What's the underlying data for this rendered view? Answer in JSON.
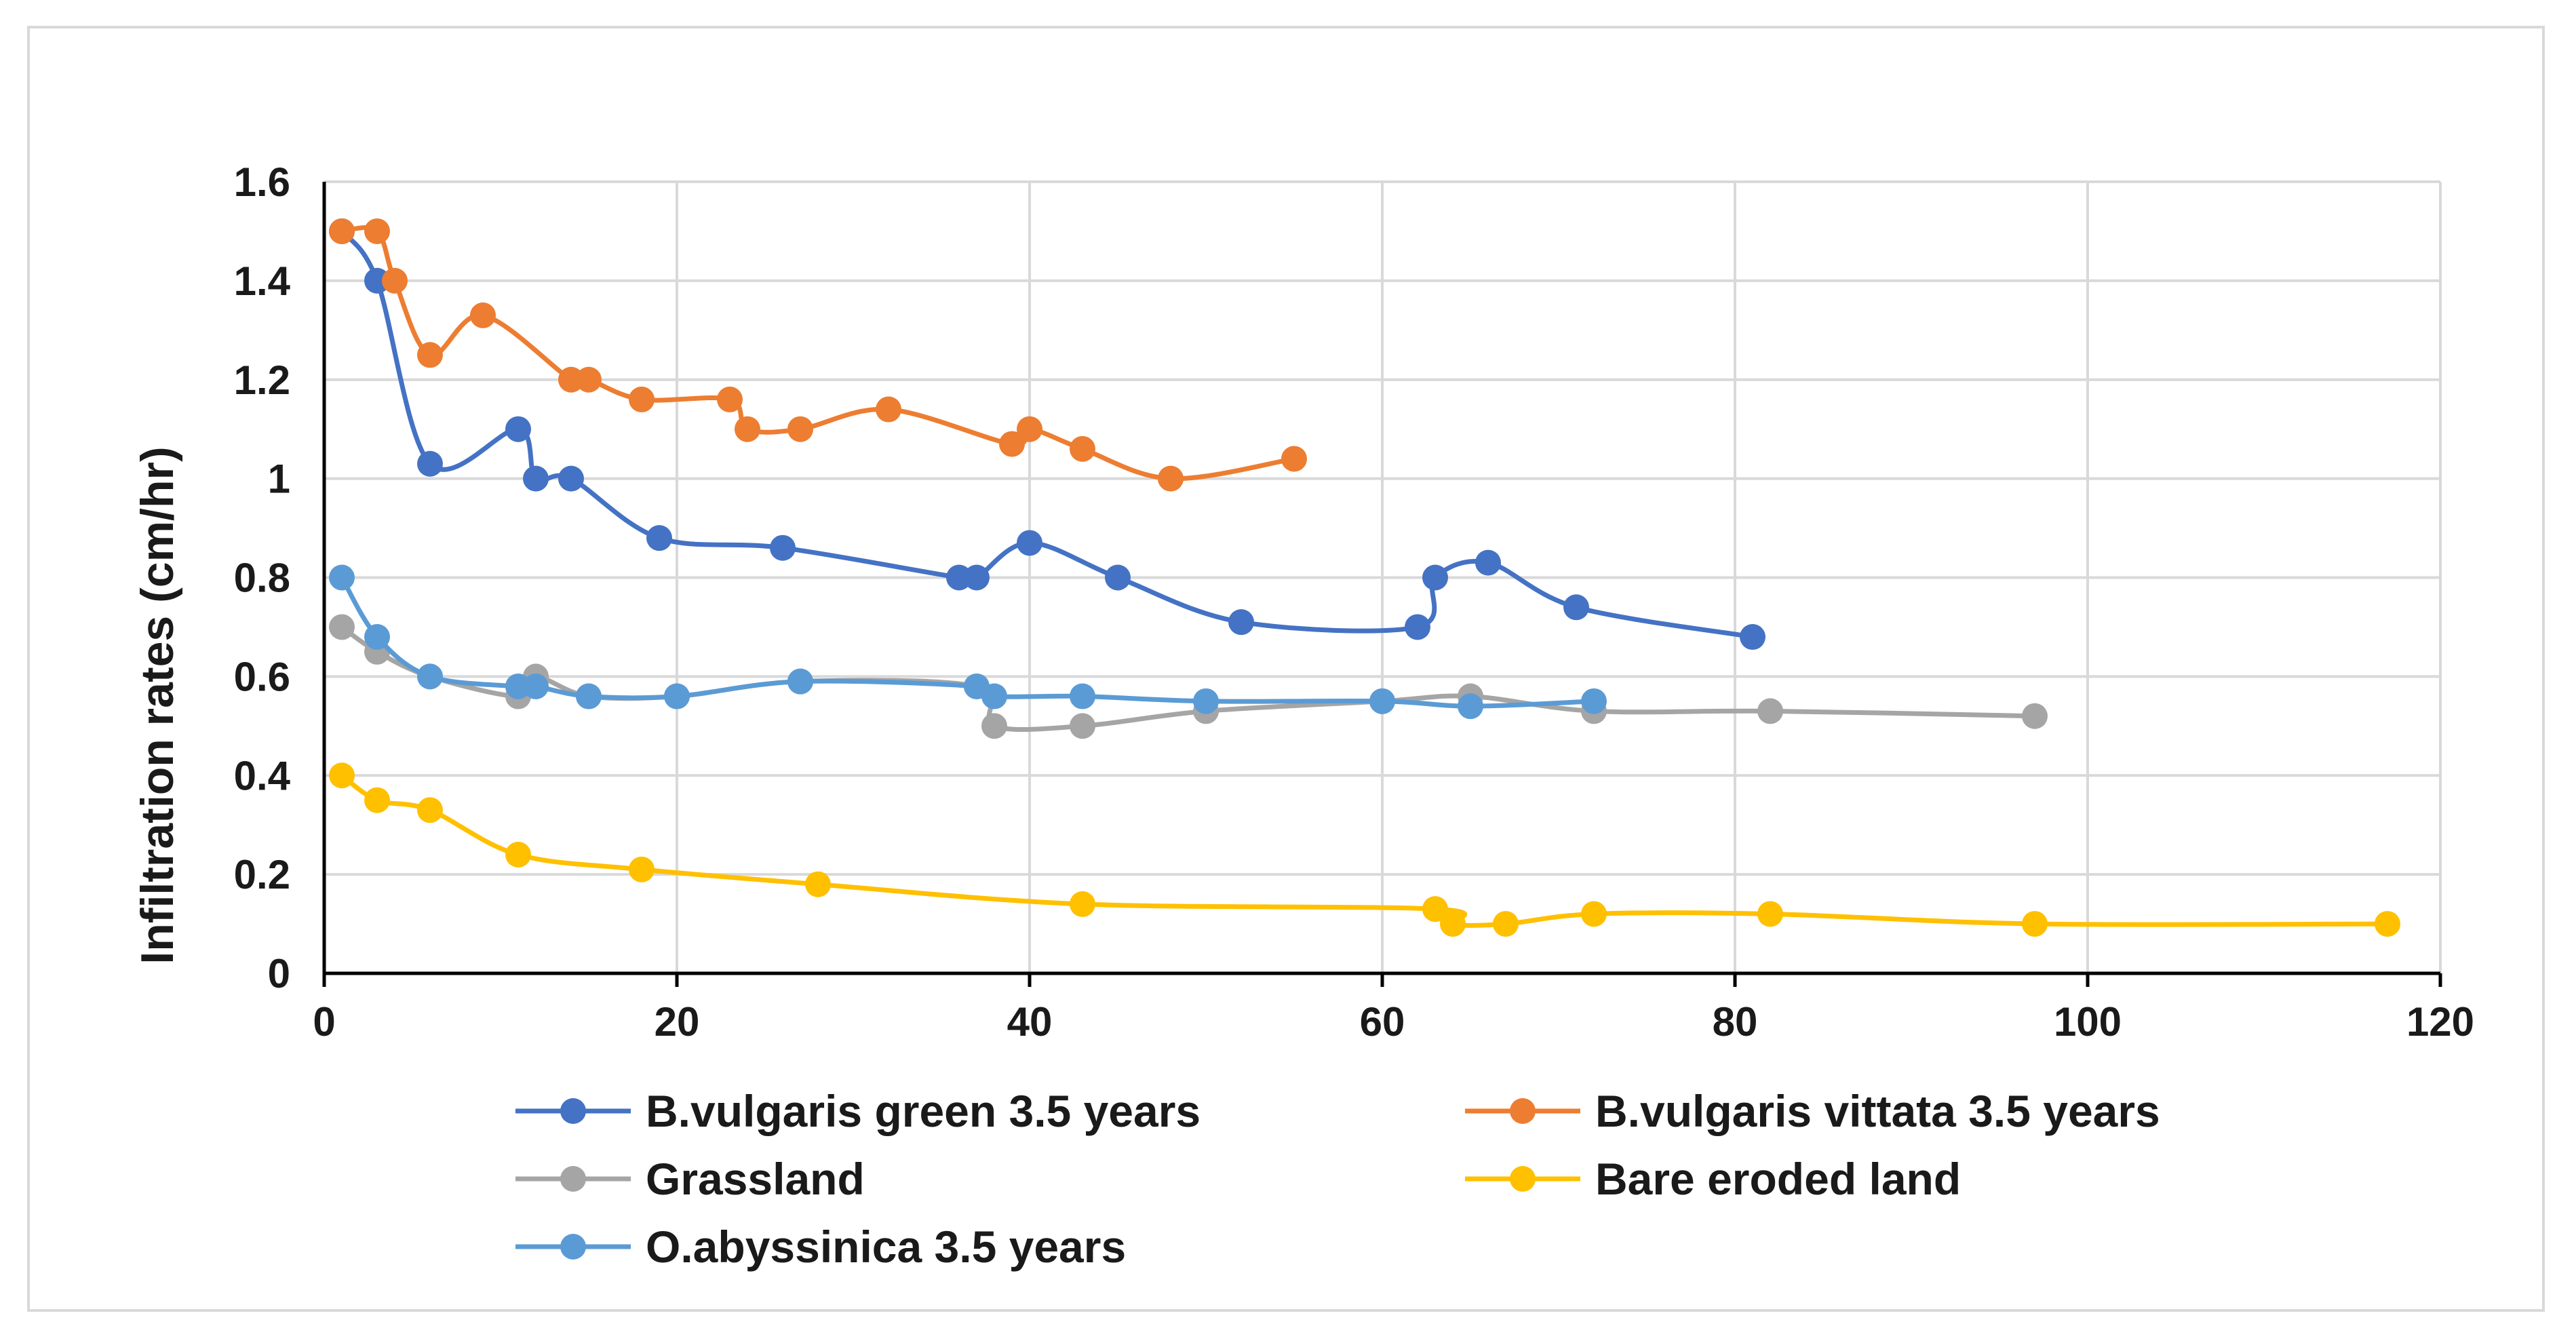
{
  "chart_data": {
    "type": "line",
    "title": "",
    "xlabel": "",
    "ylabel": "Infiltration  rates (cm/hr)",
    "xlim": [
      0,
      120
    ],
    "ylim": [
      0,
      1.6
    ],
    "x_ticks": [
      0,
      20,
      40,
      60,
      80,
      100,
      120
    ],
    "y_ticks": [
      0,
      0.2,
      0.4,
      0.6,
      0.8,
      1,
      1.2,
      1.4,
      1.6
    ],
    "x_tick_labels": [
      "0",
      "20",
      "40",
      "60",
      "80",
      "100",
      "120"
    ],
    "y_tick_labels": [
      "0",
      "0.2",
      "0.4",
      "0.6",
      "0.8",
      "1",
      "1.2",
      "1.4",
      "1.6"
    ],
    "grid": true,
    "legend_position": "bottom",
    "series": [
      {
        "name": "B.vulgaris green 3.5 years",
        "color": "#4472C4",
        "points": [
          [
            1,
            1.5
          ],
          [
            3,
            1.4
          ],
          [
            6,
            1.03
          ],
          [
            11,
            1.1
          ],
          [
            12,
            1.0
          ],
          [
            14,
            1.0
          ],
          [
            19,
            0.88
          ],
          [
            26,
            0.86
          ],
          [
            36,
            0.8
          ],
          [
            37,
            0.8
          ],
          [
            40,
            0.87
          ],
          [
            45,
            0.8
          ],
          [
            52,
            0.71
          ],
          [
            62,
            0.7
          ],
          [
            63,
            0.8
          ],
          [
            66,
            0.83
          ],
          [
            71,
            0.74
          ],
          [
            81,
            0.68
          ]
        ]
      },
      {
        "name": "B.vulgaris vittata 3.5 years",
        "color": "#ED7D31",
        "points": [
          [
            1,
            1.5
          ],
          [
            3,
            1.5
          ],
          [
            4,
            1.4
          ],
          [
            6,
            1.25
          ],
          [
            9,
            1.33
          ],
          [
            14,
            1.2
          ],
          [
            15,
            1.2
          ],
          [
            18,
            1.16
          ],
          [
            23,
            1.16
          ],
          [
            24,
            1.1
          ],
          [
            27,
            1.1
          ],
          [
            32,
            1.14
          ],
          [
            39,
            1.07
          ],
          [
            40,
            1.1
          ],
          [
            43,
            1.06
          ],
          [
            48,
            1.0
          ],
          [
            55,
            1.04
          ]
        ]
      },
      {
        "name": "Grassland",
        "color": "#A5A5A5",
        "points": [
          [
            1,
            0.7
          ],
          [
            3,
            0.65
          ],
          [
            6,
            0.6
          ],
          [
            11,
            0.56
          ],
          [
            12,
            0.6
          ],
          [
            15,
            0.56
          ],
          [
            20,
            0.56
          ],
          [
            27,
            0.59
          ],
          [
            37,
            0.58
          ],
          [
            38,
            0.5
          ],
          [
            43,
            0.5
          ],
          [
            50,
            0.53
          ],
          [
            60,
            0.55
          ],
          [
            65,
            0.56
          ],
          [
            72,
            0.53
          ],
          [
            82,
            0.53
          ],
          [
            97,
            0.52
          ]
        ]
      },
      {
        "name": "Bare eroded land",
        "color": "#FFC000",
        "points": [
          [
            1,
            0.4
          ],
          [
            3,
            0.35
          ],
          [
            6,
            0.33
          ],
          [
            11,
            0.24
          ],
          [
            18,
            0.21
          ],
          [
            28,
            0.18
          ],
          [
            43,
            0.14
          ],
          [
            63,
            0.13
          ],
          [
            64,
            0.1
          ],
          [
            67,
            0.1
          ],
          [
            72,
            0.12
          ],
          [
            82,
            0.12
          ],
          [
            97,
            0.1
          ],
          [
            117,
            0.1
          ]
        ]
      },
      {
        "name": "O.abyssinica 3.5 years",
        "color": "#5B9BD5",
        "points": [
          [
            1,
            0.8
          ],
          [
            3,
            0.68
          ],
          [
            6,
            0.6
          ],
          [
            11,
            0.58
          ],
          [
            12,
            0.58
          ],
          [
            15,
            0.56
          ],
          [
            20,
            0.56
          ],
          [
            27,
            0.59
          ],
          [
            37,
            0.58
          ],
          [
            38,
            0.56
          ],
          [
            43,
            0.56
          ],
          [
            50,
            0.55
          ],
          [
            60,
            0.55
          ],
          [
            65,
            0.54
          ],
          [
            72,
            0.55
          ]
        ]
      }
    ]
  }
}
